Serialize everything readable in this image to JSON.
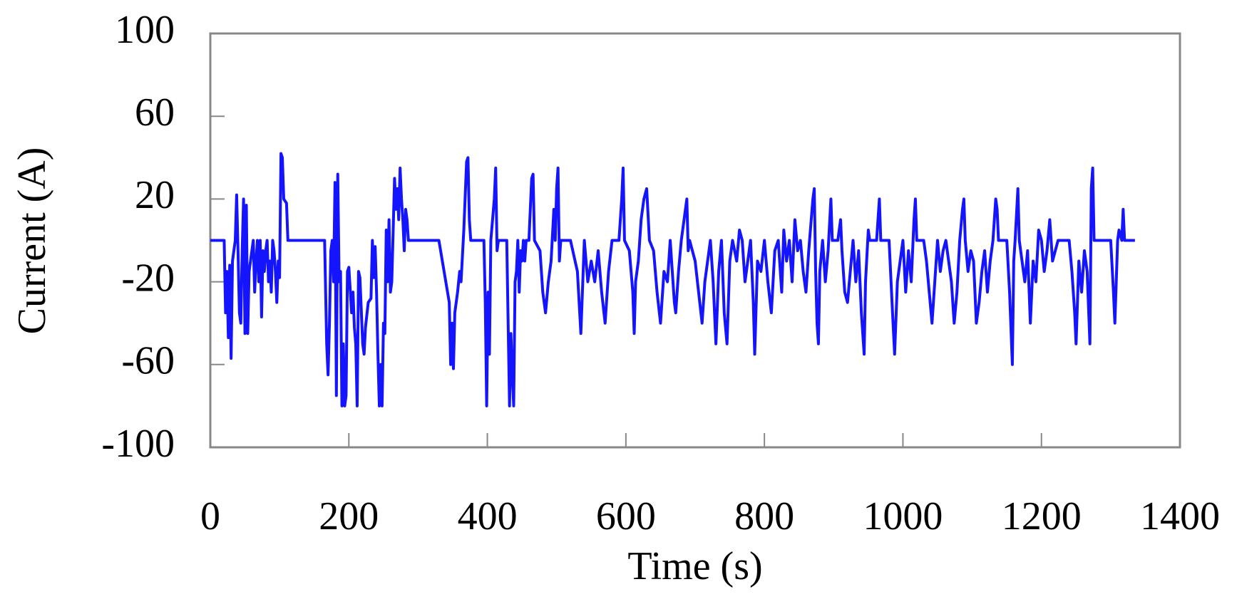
{
  "chart_data": {
    "type": "line",
    "x_label": "Time (s)",
    "y_label": "Current (A)",
    "xlim": [
      0,
      1400
    ],
    "xticks": [
      0,
      200,
      400,
      600,
      800,
      1000,
      1200,
      1400
    ],
    "ylim": [
      -100,
      100
    ],
    "yticks": [
      100,
      60,
      20,
      -20,
      -60,
      -100
    ],
    "color": "#1414ff",
    "x": [
      0,
      20,
      22,
      24,
      26,
      28,
      30,
      32,
      34,
      36,
      38,
      40,
      42,
      44,
      46,
      48,
      50,
      52,
      54,
      56,
      58,
      60,
      62,
      64,
      66,
      68,
      70,
      72,
      74,
      76,
      78,
      80,
      82,
      84,
      86,
      88,
      90,
      92,
      94,
      96,
      98,
      100,
      102,
      104,
      106,
      110,
      112,
      165,
      168,
      170,
      172,
      174,
      176,
      178,
      180,
      182,
      184,
      186,
      188,
      190,
      192,
      194,
      196,
      198,
      200,
      204,
      206,
      208,
      210,
      212,
      214,
      216,
      220,
      222,
      224,
      228,
      232,
      234,
      236,
      238,
      240,
      242,
      244,
      246,
      248,
      250,
      252,
      254,
      256,
      258,
      260,
      262,
      266,
      268,
      270,
      272,
      274,
      276,
      278,
      280,
      282,
      284,
      286,
      330,
      345,
      347,
      349,
      351,
      353,
      357,
      360,
      362,
      366,
      370,
      372,
      374,
      376,
      395,
      397,
      399,
      401,
      403,
      405,
      410,
      412,
      414,
      416,
      428,
      430,
      432,
      434,
      436,
      438,
      440,
      442,
      444,
      446,
      448,
      450,
      452,
      454,
      456,
      460,
      462,
      464,
      466,
      468,
      476,
      480,
      484,
      488,
      492,
      496,
      498,
      500,
      502,
      504,
      506,
      520,
      530,
      535,
      540,
      545,
      550,
      555,
      560,
      565,
      570,
      575,
      580,
      590,
      594,
      596,
      598,
      605,
      610,
      612,
      614,
      618,
      622,
      626,
      630,
      634,
      640,
      645,
      650,
      655,
      660,
      664,
      670,
      672,
      676,
      680,
      684,
      688,
      690,
      692,
      700,
      705,
      710,
      714,
      718,
      722,
      726,
      730,
      734,
      738,
      742,
      746,
      750,
      754,
      760,
      764,
      768,
      772,
      776,
      780,
      784,
      786,
      790,
      795,
      800,
      805,
      810,
      815,
      820,
      825,
      828,
      832,
      836,
      840,
      844,
      848,
      852,
      856,
      860,
      864,
      870,
      872,
      874,
      876,
      878,
      880,
      884,
      888,
      892,
      896,
      898,
      906,
      910,
      912,
      916,
      920,
      924,
      928,
      932,
      936,
      940,
      944,
      946,
      950,
      952,
      962,
      966,
      968,
      980,
      985,
      988,
      992,
      996,
      1000,
      1004,
      1008,
      1012,
      1016,
      1018,
      1020,
      1030,
      1034,
      1038,
      1042,
      1046,
      1050,
      1054,
      1058,
      1062,
      1070,
      1074,
      1078,
      1082,
      1086,
      1088,
      1090,
      1094,
      1098,
      1102,
      1106,
      1110,
      1114,
      1118,
      1122,
      1126,
      1130,
      1134,
      1136,
      1138,
      1150,
      1154,
      1158,
      1160,
      1162,
      1166,
      1168,
      1172,
      1176,
      1180,
      1184,
      1188,
      1192,
      1196,
      1200,
      1204,
      1208,
      1212,
      1216,
      1220,
      1224,
      1240,
      1244,
      1248,
      1250,
      1254,
      1258,
      1262,
      1266,
      1270,
      1272,
      1274,
      1276,
      1280,
      1300,
      1304,
      1306,
      1310,
      1312,
      1316,
      1318,
      1320,
      1335
    ],
    "values": [
      0,
      0,
      -35,
      -15,
      -47,
      -12,
      -57,
      -10,
      -5,
      0,
      22,
      -5,
      -35,
      -40,
      -5,
      20,
      -45,
      17,
      -45,
      -15,
      -10,
      -5,
      0,
      -25,
      -10,
      0,
      -20,
      0,
      -37,
      -5,
      -15,
      -5,
      0,
      -20,
      -10,
      -25,
      0,
      -5,
      -15,
      -30,
      -10,
      -18,
      42,
      40,
      20,
      18,
      0,
      0,
      -50,
      -65,
      -40,
      -5,
      0,
      -20,
      28,
      -75,
      32,
      -20,
      -15,
      -80,
      -50,
      -80,
      -75,
      -15,
      -13,
      -35,
      -25,
      -42,
      -50,
      -80,
      -15,
      -18,
      -50,
      -55,
      -42,
      -30,
      -28,
      0,
      -18,
      -3,
      -25,
      -55,
      -80,
      -60,
      -80,
      -40,
      -45,
      5,
      -20,
      10,
      -25,
      -20,
      30,
      15,
      25,
      10,
      35,
      20,
      10,
      -5,
      15,
      10,
      0,
      0,
      -30,
      -60,
      -40,
      -62,
      -35,
      -25,
      -15,
      -20,
      5,
      38,
      40,
      10,
      0,
      0,
      -30,
      -80,
      -25,
      -55,
      0,
      20,
      35,
      -5,
      0,
      0,
      -40,
      -80,
      -45,
      -65,
      -80,
      -20,
      -15,
      0,
      -25,
      -5,
      -10,
      0,
      -10,
      0,
      0,
      15,
      30,
      32,
      0,
      -5,
      -25,
      -35,
      -20,
      -10,
      15,
      0,
      25,
      35,
      -10,
      0,
      0,
      -15,
      -45,
      0,
      -20,
      -10,
      -20,
      -5,
      -25,
      -40,
      -15,
      0,
      0,
      20,
      35,
      0,
      -5,
      -25,
      -45,
      -20,
      -10,
      10,
      20,
      25,
      0,
      -5,
      -25,
      -40,
      -15,
      -20,
      0,
      -30,
      -35,
      -15,
      0,
      10,
      20,
      -5,
      0,
      -10,
      -25,
      -40,
      -20,
      -10,
      0,
      -20,
      -50,
      -15,
      0,
      -35,
      -50,
      -10,
      0,
      -10,
      5,
      0,
      -20,
      -10,
      0,
      -30,
      -55,
      -10,
      -15,
      0,
      -20,
      -35,
      -5,
      0,
      -25,
      5,
      -10,
      0,
      -20,
      10,
      -5,
      0,
      -15,
      -25,
      -5,
      20,
      25,
      -15,
      -40,
      -50,
      -15,
      0,
      -20,
      -5,
      20,
      0,
      0,
      10,
      -5,
      -25,
      -30,
      -15,
      0,
      -20,
      -5,
      -35,
      -55,
      -20,
      5,
      0,
      0,
      20,
      0,
      0,
      -35,
      -55,
      -20,
      -10,
      0,
      -25,
      -5,
      -20,
      10,
      20,
      0,
      0,
      -10,
      -25,
      -40,
      -20,
      0,
      -15,
      -5,
      0,
      -20,
      -40,
      -25,
      0,
      15,
      20,
      0,
      -15,
      -5,
      -10,
      -40,
      -30,
      -15,
      -5,
      -25,
      -10,
      0,
      20,
      15,
      0,
      0,
      -25,
      -60,
      -10,
      0,
      25,
      0,
      -10,
      -20,
      -5,
      -40,
      -10,
      -20,
      5,
      0,
      -15,
      -5,
      10,
      -10,
      -5,
      0,
      0,
      -15,
      -35,
      -50,
      -10,
      -25,
      -5,
      -15,
      -50,
      25,
      35,
      0,
      0,
      0,
      -25,
      -40,
      0,
      5,
      0,
      15,
      0,
      0
    ]
  }
}
